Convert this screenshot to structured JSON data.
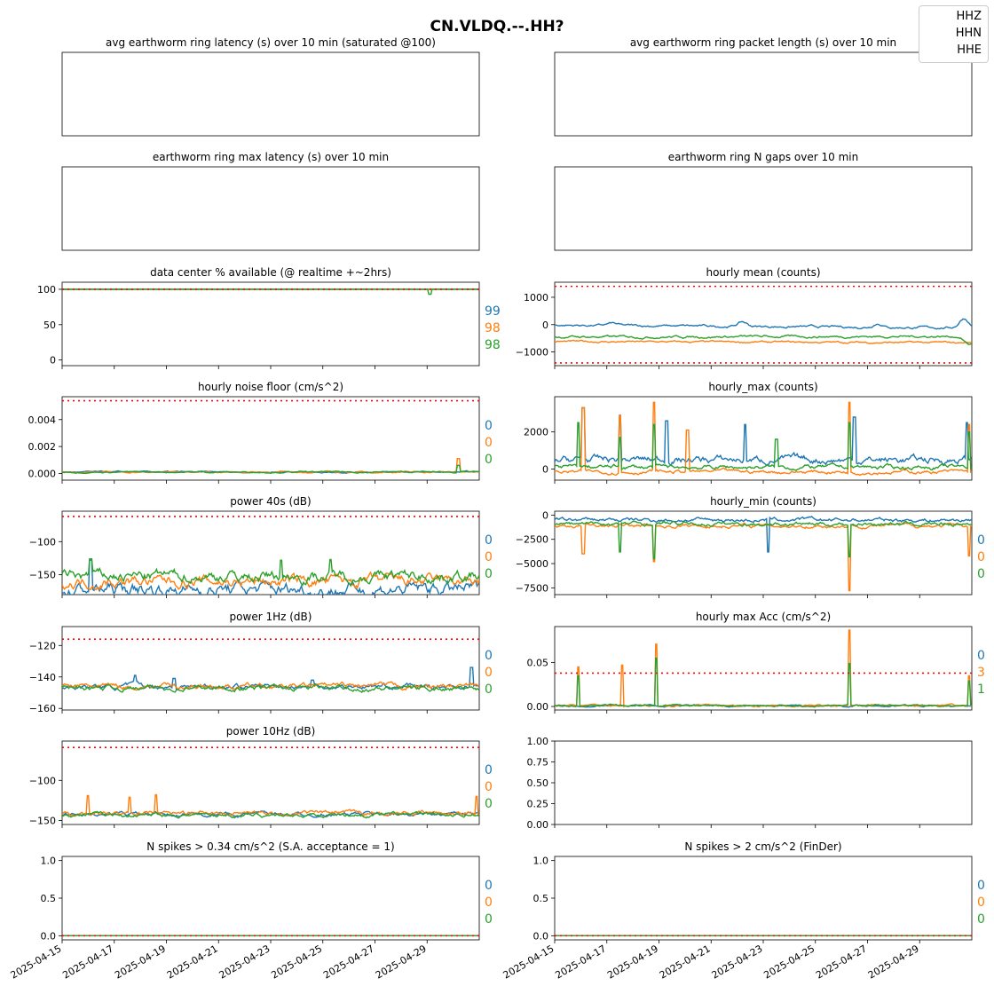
{
  "figure": {
    "suptitle": "CN.VLDQ.--.HH?",
    "legend": {
      "placement": "top-right",
      "items": [
        "HHZ",
        "HHN",
        "HHE"
      ]
    },
    "colors": {
      "HHZ": "#1f77b4",
      "HHN": "#ff7f0e",
      "HHE": "#2ca02c",
      "threshold": "#ff0000"
    },
    "x_tick_labels": [
      "2025-04-15",
      "2025-04-17",
      "2025-04-19",
      "2025-04-21",
      "2025-04-23",
      "2025-04-25",
      "2025-04-27",
      "2025-04-29"
    ]
  },
  "chart_data": [
    {
      "type": "line",
      "title": "avg earthworm ring latency (s)   over 10 min (saturated @100)",
      "empty": true,
      "axes_visible": false
    },
    {
      "type": "line",
      "title": "avg earthworm ring packet length (s)   over 10 min",
      "empty": true,
      "axes_visible": false
    },
    {
      "type": "line",
      "title": "earthworm ring max latency (s)   over 10 min",
      "empty": true,
      "axes_visible": false
    },
    {
      "type": "line",
      "title": "earthworm ring N gaps   over 10 min",
      "empty": true,
      "axes_visible": false
    },
    {
      "type": "line",
      "title": "data center % available (@ realtime +~2hrs)",
      "xlim": [
        "2025-04-15",
        "2025-05-01"
      ],
      "ylim": [
        -8,
        110
      ],
      "yticks": [
        "0",
        "50",
        "100"
      ],
      "threshold": 100,
      "side_labels": [
        "99",
        "98",
        "98"
      ],
      "series": [
        {
          "channel": "HHZ",
          "base": 100,
          "noise": 0.05,
          "spikes": []
        },
        {
          "channel": "HHN",
          "base": 100,
          "noise": 0.05,
          "spikes": []
        },
        {
          "channel": "HHE",
          "base": 100,
          "noise": 0.05,
          "spikes": [
            {
              "date": "2025-04-29.1",
              "value": 93
            }
          ]
        }
      ]
    },
    {
      "type": "line",
      "title": "hourly mean (counts)",
      "xlim": [
        "2025-04-15",
        "2025-05-01"
      ],
      "ylim": [
        -1500,
        1550
      ],
      "yticks": [
        "−1000",
        "0",
        "1000"
      ],
      "threshold": [
        1400,
        -1400
      ],
      "side_labels": [],
      "series": [
        {
          "channel": "HHZ",
          "base": -20,
          "noise": 25,
          "drift": -100,
          "bumps": [
            {
              "date": "2025-04-17.2",
              "value": 80
            },
            {
              "date": "2025-04-22.2",
              "value": 160
            },
            {
              "date": "2025-04-27.4",
              "value": 150
            },
            {
              "date": "2025-04-30.7",
              "value": 350
            }
          ]
        },
        {
          "channel": "HHN",
          "base": -620,
          "noise": 20,
          "drift": -40,
          "bumps": []
        },
        {
          "channel": "HHE",
          "base": -450,
          "noise": 25,
          "drift": 20,
          "bumps": [
            {
              "date": "2025-04-30.9",
              "value": -300
            }
          ]
        }
      ]
    },
    {
      "type": "line",
      "title": "hourly noise floor (cm/s^2)",
      "xlim": [
        "2025-04-15",
        "2025-05-01"
      ],
      "ylim": [
        -0.0005,
        0.0057
      ],
      "yticks": [
        "0.000",
        "0.002",
        "0.004"
      ],
      "threshold": 0.0054,
      "side_labels": [
        "0",
        "0",
        "0"
      ],
      "series": [
        {
          "channel": "HHZ",
          "base": 0.0001,
          "noise": 3e-05,
          "spikes": []
        },
        {
          "channel": "HHN",
          "base": 0.0001,
          "noise": 3e-05,
          "spikes": [
            {
              "date": "2025-04-30.2",
              "value": 0.0011
            }
          ]
        },
        {
          "channel": "HHE",
          "base": 0.0001,
          "noise": 3e-05,
          "spikes": [
            {
              "date": "2025-04-30.2",
              "value": 0.0006
            }
          ]
        }
      ]
    },
    {
      "type": "line",
      "title": "hourly_max (counts)",
      "xlim": [
        "2025-04-15",
        "2025-05-01"
      ],
      "ylim": [
        -600,
        3900
      ],
      "yticks": [
        "0",
        "2000"
      ],
      "threshold": null,
      "side_labels": [],
      "series": [
        {
          "channel": "HHZ",
          "base": 500,
          "noise": 120,
          "spikes": [
            {
              "date": "2025-04-16.1",
              "value": 3300
            },
            {
              "date": "2025-04-17.5",
              "value": 2900
            },
            {
              "date": "2025-04-19.3",
              "value": 2600
            },
            {
              "date": "2025-04-22.3",
              "value": 2400
            },
            {
              "date": "2025-04-26.5",
              "value": 2800
            },
            {
              "date": "2025-04-30.8",
              "value": 2500
            }
          ]
        },
        {
          "channel": "HHN",
          "base": -150,
          "noise": 60,
          "spikes": [
            {
              "date": "2025-04-16.1",
              "value": 3300
            },
            {
              "date": "2025-04-17.5",
              "value": 2900
            },
            {
              "date": "2025-04-18.8",
              "value": 3600
            },
            {
              "date": "2025-04-20.1",
              "value": 2100
            },
            {
              "date": "2025-04-26.3",
              "value": 3600
            },
            {
              "date": "2025-04-30.9",
              "value": 2400
            }
          ]
        },
        {
          "channel": "HHE",
          "base": 100,
          "noise": 70,
          "spikes": [
            {
              "date": "2025-04-15.9",
              "value": 2500
            },
            {
              "date": "2025-04-17.5",
              "value": 1700
            },
            {
              "date": "2025-04-18.8",
              "value": 2400
            },
            {
              "date": "2025-04-23.5",
              "value": 1600
            },
            {
              "date": "2025-04-26.3",
              "value": 2500
            },
            {
              "date": "2025-04-30.9",
              "value": 2000
            }
          ]
        }
      ]
    },
    {
      "type": "line",
      "title": "power 40s (dB)",
      "xlim": [
        "2025-04-15",
        "2025-05-01"
      ],
      "ylim": [
        -180,
        -54
      ],
      "yticks": [
        "−150",
        "−100"
      ],
      "threshold": -62,
      "side_labels": [
        "0",
        "0",
        "0"
      ],
      "series": [
        {
          "channel": "HHZ",
          "base": -172,
          "noise": 6,
          "spikes": [
            {
              "date": "2025-04-16.1",
              "value": -128
            }
          ]
        },
        {
          "channel": "HHN",
          "base": -160,
          "noise": 5,
          "spikes": []
        },
        {
          "channel": "HHE",
          "base": -152,
          "noise": 5,
          "spikes": [
            {
              "date": "2025-04-16.1",
              "value": -126
            },
            {
              "date": "2025-04-23.4",
              "value": -128
            },
            {
              "date": "2025-04-25.3",
              "value": -127
            }
          ]
        }
      ]
    },
    {
      "type": "line",
      "title": "hourly_min (counts)",
      "xlim": [
        "2025-04-15",
        "2025-05-01"
      ],
      "ylim": [
        -8200,
        400
      ],
      "yticks": [
        "−7500",
        "−5000",
        "−2500",
        "0"
      ],
      "threshold": null,
      "side_labels": [
        "0",
        "0",
        "0"
      ],
      "series": [
        {
          "channel": "HHZ",
          "base": -500,
          "noise": 120,
          "spikes": [
            {
              "date": "2025-04-23.2",
              "value": -3800
            }
          ]
        },
        {
          "channel": "HHN",
          "base": -1100,
          "noise": 120,
          "spikes": [
            {
              "date": "2025-04-16.1",
              "value": -4000
            },
            {
              "date": "2025-04-18.8",
              "value": -4800
            },
            {
              "date": "2025-04-26.3",
              "value": -7800
            },
            {
              "date": "2025-04-30.9",
              "value": -4200
            }
          ]
        },
        {
          "channel": "HHE",
          "base": -900,
          "noise": 120,
          "spikes": [
            {
              "date": "2025-04-17.5",
              "value": -3800
            },
            {
              "date": "2025-04-18.8",
              "value": -4500
            },
            {
              "date": "2025-04-26.3",
              "value": -4300
            }
          ]
        }
      ]
    },
    {
      "type": "line",
      "title": "power 1Hz (dB)",
      "xlim": [
        "2025-04-15",
        "2025-05-01"
      ],
      "ylim": [
        -161,
        -108
      ],
      "yticks": [
        "−160",
        "−140",
        "−120"
      ],
      "threshold": -116,
      "side_labels": [
        "0",
        "0",
        "0"
      ],
      "series": [
        {
          "channel": "HHZ",
          "base": -146,
          "noise": 1,
          "spikes": [
            {
              "date": "2025-04-17.8",
              "value": -139
            },
            {
              "date": "2025-04-19.3",
              "value": -141
            },
            {
              "date": "2025-04-24.6",
              "value": -142
            },
            {
              "date": "2025-04-30.7",
              "value": -134
            }
          ]
        },
        {
          "channel": "HHN",
          "base": -146,
          "noise": 1,
          "spikes": []
        },
        {
          "channel": "HHE",
          "base": -147,
          "noise": 1,
          "spikes": []
        }
      ]
    },
    {
      "type": "line",
      "title": "hourly max Acc (cm/s^2)",
      "xlim": [
        "2025-04-15",
        "2025-05-01"
      ],
      "ylim": [
        -0.004,
        0.091
      ],
      "yticks": [
        "0.00",
        "0.05"
      ],
      "threshold": 0.038,
      "side_labels": [
        "0",
        "3",
        "1"
      ],
      "series": [
        {
          "channel": "HHZ",
          "base": 0.001,
          "noise": 0.0006,
          "spikes": []
        },
        {
          "channel": "HHN",
          "base": 0.001,
          "noise": 0.0006,
          "spikes": [
            {
              "date": "2025-04-15.9",
              "value": 0.045
            },
            {
              "date": "2025-04-17.6",
              "value": 0.047
            },
            {
              "date": "2025-04-18.9",
              "value": 0.071
            },
            {
              "date": "2025-04-26.3",
              "value": 0.087
            },
            {
              "date": "2025-04-30.9",
              "value": 0.035
            }
          ]
        },
        {
          "channel": "HHE",
          "base": 0.001,
          "noise": 0.0006,
          "spikes": [
            {
              "date": "2025-04-15.9",
              "value": 0.035
            },
            {
              "date": "2025-04-18.9",
              "value": 0.055
            },
            {
              "date": "2025-04-26.3",
              "value": 0.049
            },
            {
              "date": "2025-04-30.9",
              "value": 0.029
            }
          ]
        }
      ]
    },
    {
      "type": "line",
      "title": "power 10Hz (dB)",
      "xlim": [
        "2025-04-15",
        "2025-05-01"
      ],
      "ylim": [
        -155,
        -51
      ],
      "yticks": [
        "−150",
        "−100"
      ],
      "threshold": -59,
      "side_labels": [
        "0",
        "0",
        "0"
      ],
      "series": [
        {
          "channel": "HHZ",
          "base": -142,
          "noise": 1.5,
          "spikes": []
        },
        {
          "channel": "HHN",
          "base": -141,
          "noise": 1.5,
          "spikes": [
            {
              "date": "2025-04-16.0",
              "value": -119
            },
            {
              "date": "2025-04-17.6",
              "value": -121
            },
            {
              "date": "2025-04-18.6",
              "value": -118
            },
            {
              "date": "2025-04-30.9",
              "value": -120
            }
          ]
        },
        {
          "channel": "HHE",
          "base": -143,
          "noise": 1.5,
          "spikes": []
        }
      ]
    },
    {
      "type": "line",
      "title": "",
      "xlim": [
        "2025-04-15",
        "2025-05-01"
      ],
      "ylim": [
        0,
        1
      ],
      "yticks": [
        "0.00",
        "0.25",
        "0.50",
        "0.75",
        "1.00"
      ],
      "threshold": null,
      "side_labels": [],
      "series": []
    },
    {
      "type": "line",
      "title": "N spikes > 0.34 cm/s^2 (S.A. acceptance = 1)",
      "xlim": [
        "2025-04-15",
        "2025-05-01"
      ],
      "ylim": [
        -0.055,
        1.055
      ],
      "yticks": [
        "0.0",
        "0.5",
        "1.0"
      ],
      "threshold": 0,
      "side_labels": [
        "0",
        "0",
        "0"
      ],
      "series": [
        {
          "channel": "HHZ",
          "base": 0,
          "noise": 0,
          "spikes": []
        },
        {
          "channel": "HHN",
          "base": 0,
          "noise": 0,
          "spikes": []
        },
        {
          "channel": "HHE",
          "base": 0,
          "noise": 0,
          "spikes": []
        }
      ]
    },
    {
      "type": "line",
      "title": "N spikes > 2 cm/s^2 (FinDer)",
      "xlim": [
        "2025-04-15",
        "2025-05-01"
      ],
      "ylim": [
        -0.055,
        1.055
      ],
      "yticks": [
        "0.0",
        "0.5",
        "1.0"
      ],
      "threshold": 0,
      "side_labels": [
        "0",
        "0",
        "0"
      ],
      "series": [
        {
          "channel": "HHZ",
          "base": 0,
          "noise": 0,
          "spikes": []
        },
        {
          "channel": "HHN",
          "base": 0,
          "noise": 0,
          "spikes": []
        },
        {
          "channel": "HHE",
          "base": 0,
          "noise": 0,
          "spikes": []
        }
      ]
    }
  ]
}
